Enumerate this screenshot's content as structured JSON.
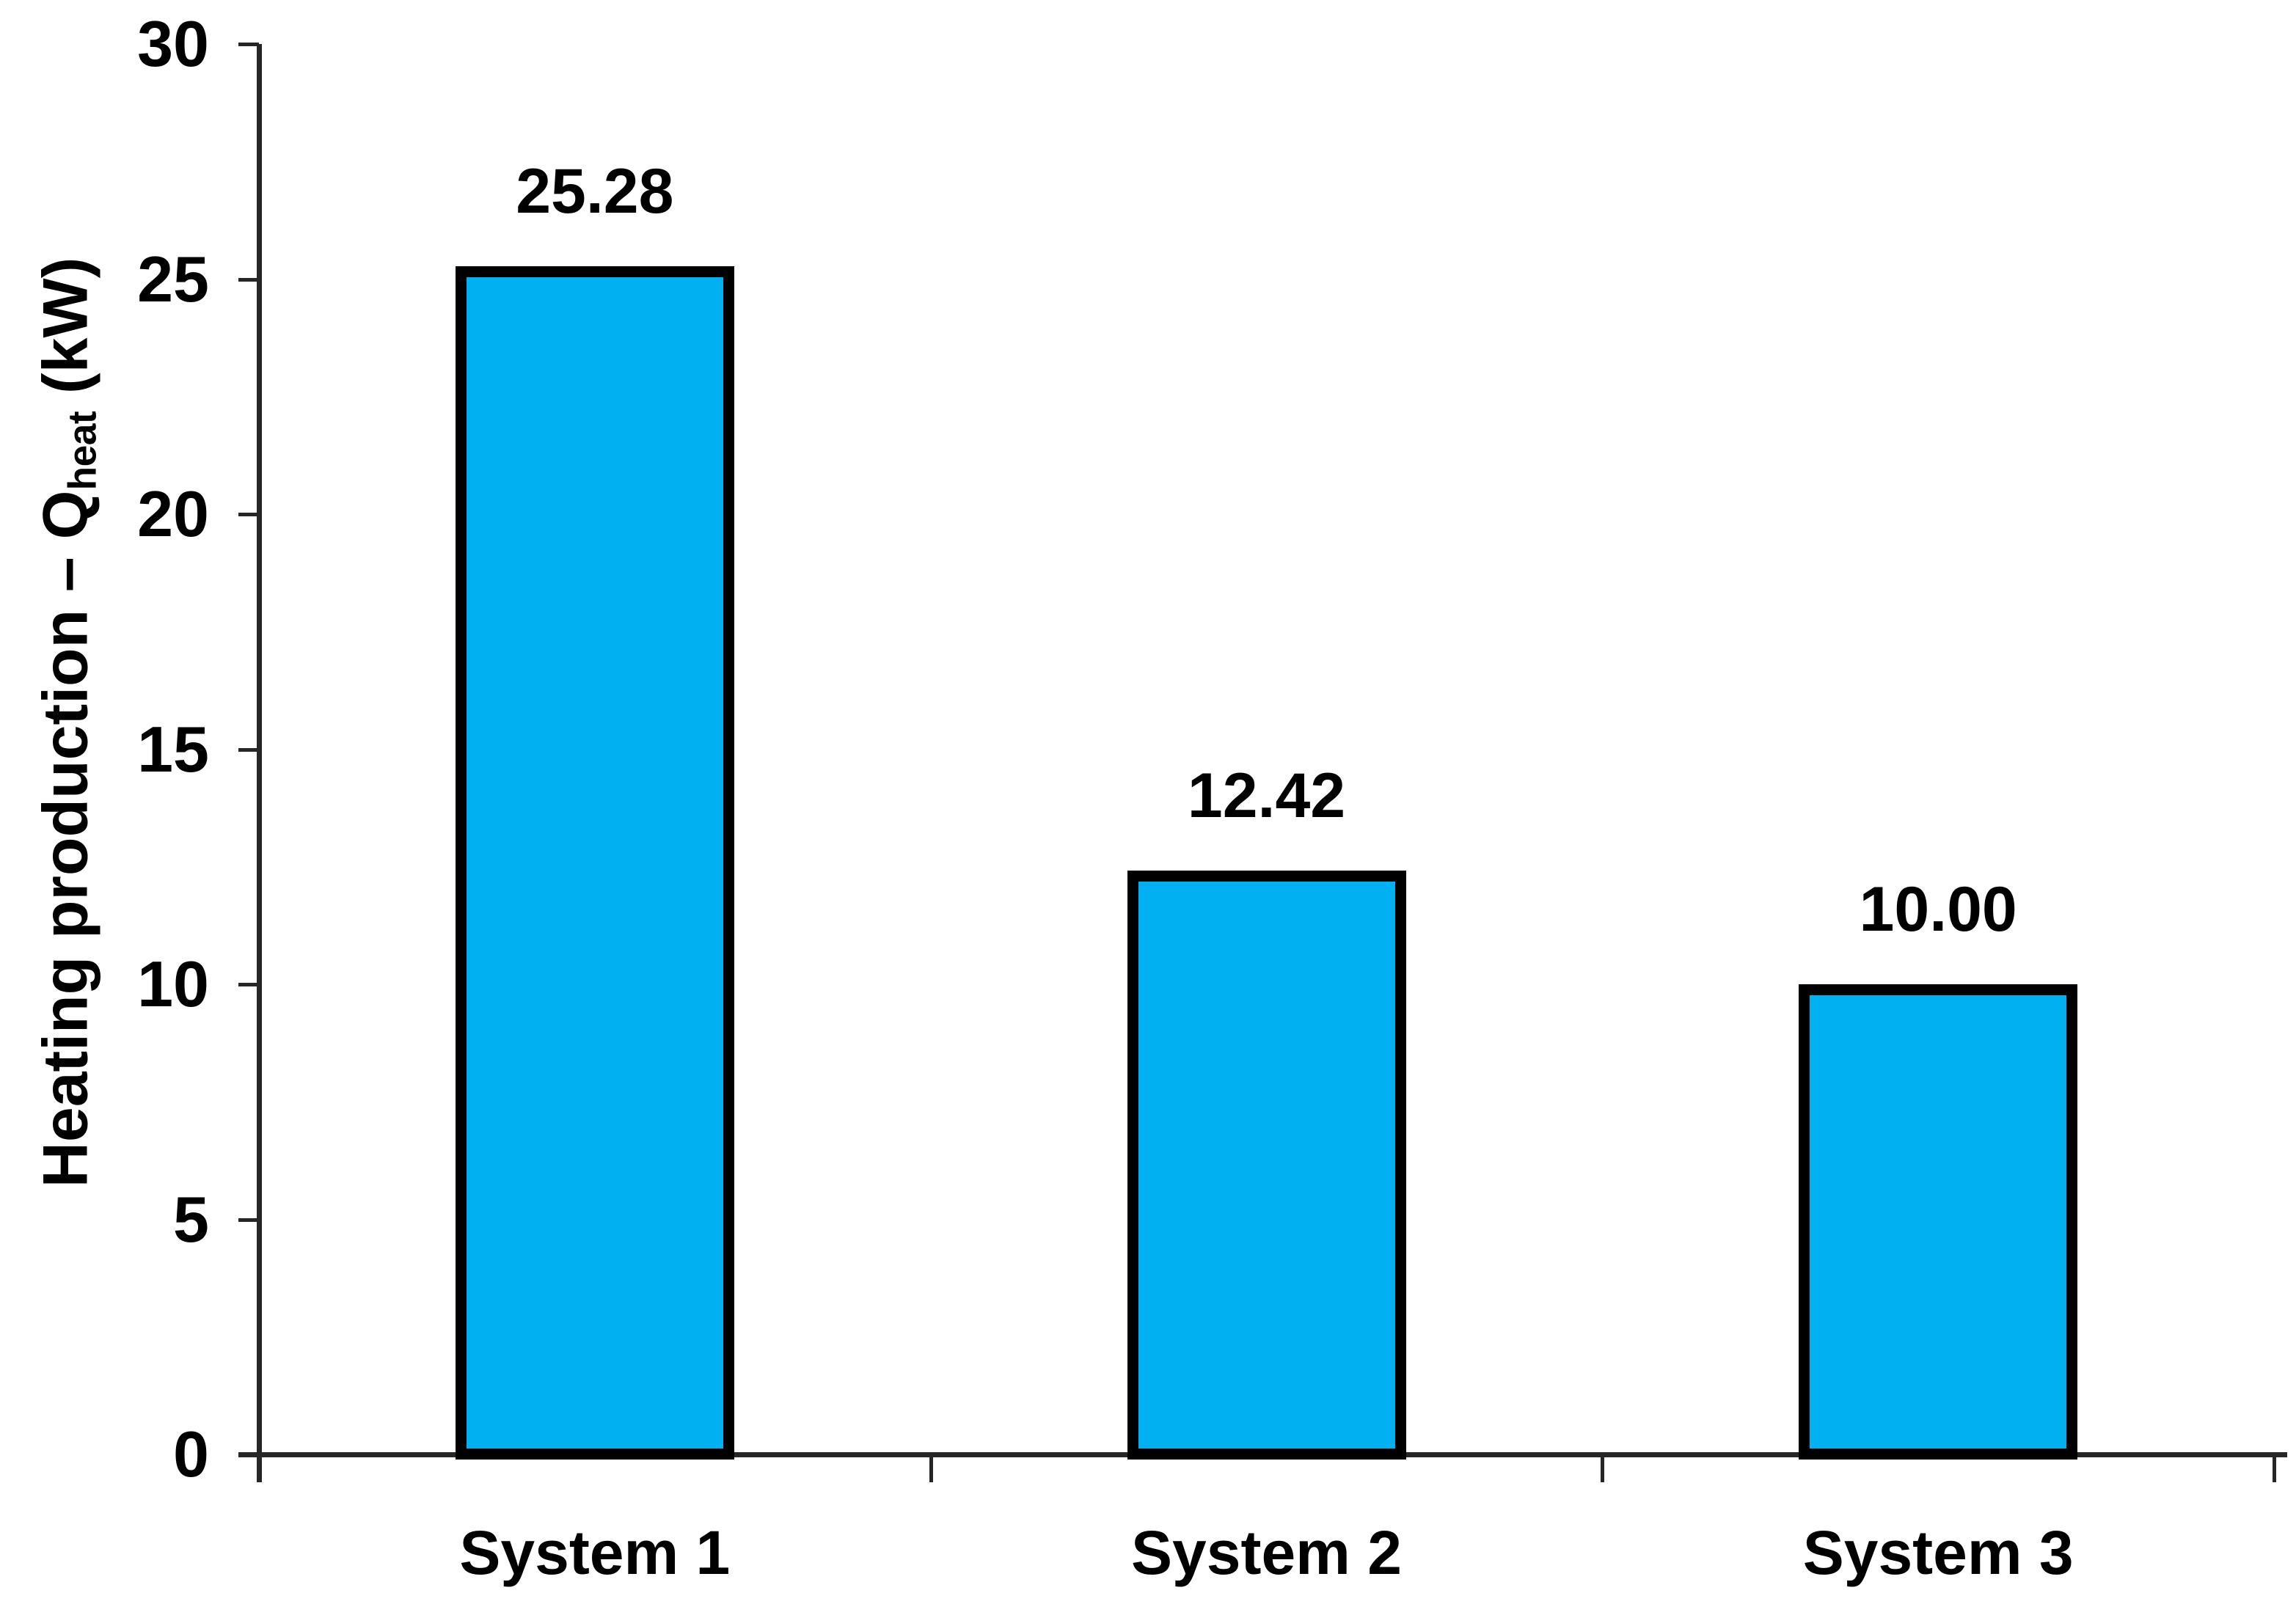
{
  "chart_data": {
    "type": "bar",
    "title": "",
    "categories": [
      "System 1",
      "System 2",
      "System 3"
    ],
    "values": [
      25.28,
      12.42,
      10.0
    ],
    "value_labels": [
      "25.28",
      "12.42",
      "10.00"
    ],
    "ylabel": "Heating production – Qheat (kW)",
    "ylabel_parts": {
      "main": "Heating production – Q",
      "sub": "heat",
      "unit": " (kW)"
    },
    "xlabel": "",
    "ylim": [
      0,
      30
    ],
    "yticks": [
      0,
      5,
      10,
      15,
      20,
      25,
      30
    ],
    "ytick_labels": [
      "0",
      "5",
      "10",
      "15",
      "20",
      "25",
      "30"
    ],
    "grid": false,
    "legend": "none",
    "colors": {
      "bar_fill": "#00B0F0",
      "bar_border": "#000000",
      "axis": "#262626",
      "text": "#000000",
      "background": "#FFFFFF"
    }
  }
}
